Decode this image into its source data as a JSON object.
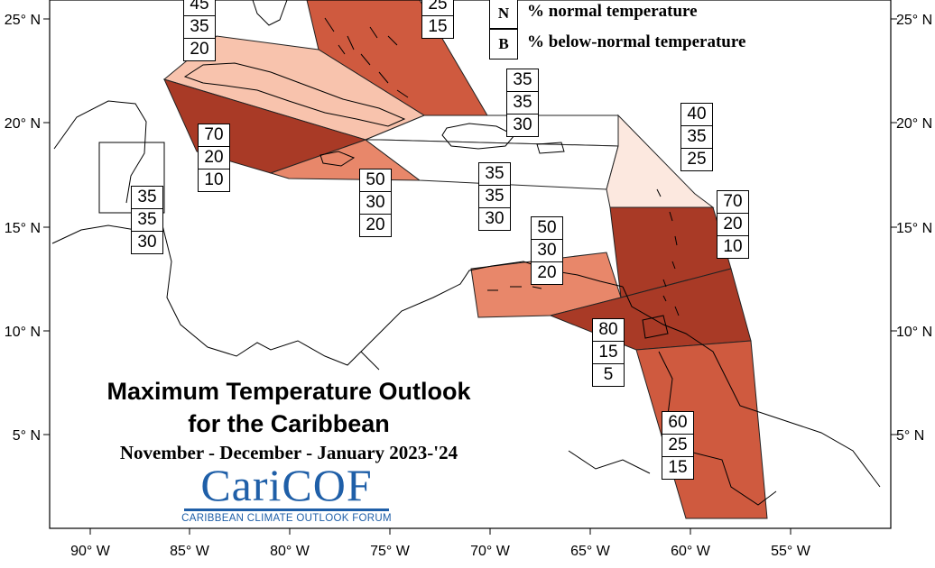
{
  "title_line1": "Maximum Temperature Outlook",
  "title_line2": "for the Caribbean",
  "subtitle": "November - December - January 2023-'24",
  "logo": {
    "name_part1": "Cari",
    "name_part2": "COF",
    "tagline": "CARIBBEAN CLIMATE OUTLOOK FORUM",
    "color": "#1f5fa8"
  },
  "legend": [
    {
      "key": "N",
      "label": "% normal temperature"
    },
    {
      "key": "B",
      "label": "% below-normal temperature"
    }
  ],
  "axes": {
    "lon_labels": [
      "90° W",
      "85° W",
      "80° W",
      "75° W",
      "70° W",
      "65° W",
      "60° W",
      "55° W"
    ],
    "lat_labels": [
      "25° N",
      "20° N",
      "15° N",
      "10° N",
      "5° N"
    ]
  },
  "colors": {
    "c70": "#a93a26",
    "c60": "#cf5a3f",
    "c50": "#e8876a",
    "c45": "#f8c3ad",
    "c40": "#fce8df",
    "c35": "#ffffff"
  },
  "regions": [
    {
      "id": "bahamas",
      "above": "",
      "normal": "25",
      "below": "15"
    },
    {
      "id": "cuba",
      "above": "45",
      "normal": "35",
      "below": "20"
    },
    {
      "id": "hispaniola-north",
      "above": "35",
      "normal": "35",
      "below": "30"
    },
    {
      "id": "cayman-jamaica-west",
      "above": "70",
      "normal": "20",
      "below": "10"
    },
    {
      "id": "belize",
      "above": "35",
      "normal": "35",
      "below": "30"
    },
    {
      "id": "jamaica",
      "above": "50",
      "normal": "30",
      "below": "20"
    },
    {
      "id": "hispaniola-south",
      "above": "35",
      "normal": "35",
      "below": "30"
    },
    {
      "id": "leeward-islands",
      "above": "40",
      "normal": "35",
      "below": "25"
    },
    {
      "id": "windward-islands",
      "above": "70",
      "normal": "20",
      "below": "10"
    },
    {
      "id": "abc-islands",
      "above": "50",
      "normal": "30",
      "below": "20"
    },
    {
      "id": "trinidad-tobago",
      "above": "80",
      "normal": "15",
      "below": "5"
    },
    {
      "id": "guianas",
      "above": "60",
      "normal": "25",
      "below": "15"
    }
  ]
}
